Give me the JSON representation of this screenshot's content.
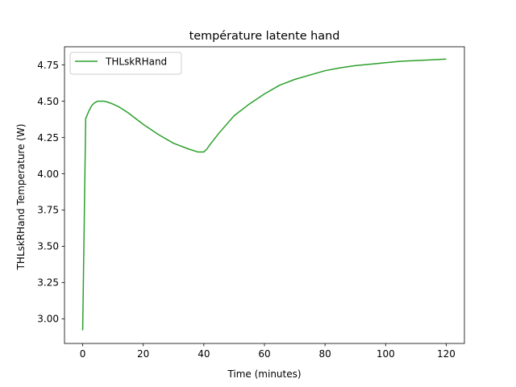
{
  "chart_data": {
    "type": "line",
    "title": "température latente hand",
    "xlabel": "Time (minutes)",
    "ylabel": "THLskRHand Temperature (W)",
    "xlim": [
      -6,
      126
    ],
    "ylim": [
      2.83,
      4.875
    ],
    "x_ticks": [
      0,
      20,
      40,
      60,
      80,
      100,
      120
    ],
    "x_tick_labels": [
      "0",
      "20",
      "40",
      "60",
      "80",
      "100",
      "120"
    ],
    "y_ticks": [
      3.0,
      3.25,
      3.5,
      3.75,
      4.0,
      4.25,
      4.5,
      4.75
    ],
    "y_tick_labels": [
      "3.00",
      "3.25",
      "3.50",
      "3.75",
      "4.00",
      "4.25",
      "4.50",
      "4.75"
    ],
    "grid": false,
    "legend_position": "upper left",
    "series": [
      {
        "name": "THLskRHand",
        "color": "#2ca02c",
        "x": [
          0,
          1,
          2,
          3,
          4,
          5,
          6,
          7,
          8,
          10,
          12,
          15,
          20,
          25,
          30,
          35,
          38,
          39,
          40,
          41,
          42,
          45,
          50,
          55,
          60,
          65,
          70,
          75,
          80,
          85,
          90,
          95,
          100,
          105,
          110,
          115,
          120
        ],
        "y": [
          2.92,
          4.38,
          4.43,
          4.47,
          4.49,
          4.5,
          4.5,
          4.5,
          4.495,
          4.48,
          4.46,
          4.42,
          4.34,
          4.27,
          4.21,
          4.17,
          4.15,
          4.15,
          4.15,
          4.17,
          4.2,
          4.28,
          4.4,
          4.48,
          4.55,
          4.61,
          4.65,
          4.68,
          4.71,
          4.73,
          4.745,
          4.755,
          4.765,
          4.775,
          4.78,
          4.785,
          4.79
        ]
      }
    ]
  }
}
